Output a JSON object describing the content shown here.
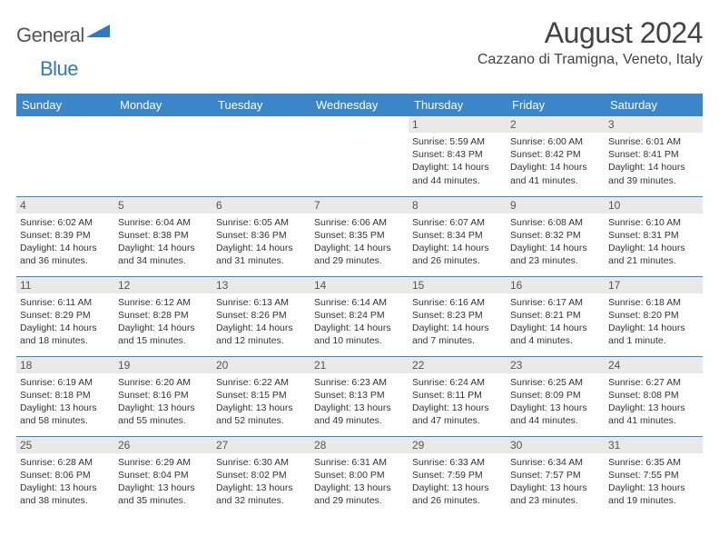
{
  "logo": {
    "word1": "General",
    "word2": "Blue"
  },
  "title": "August 2024",
  "subtitle": "Cazzano di Tramigna, Veneto, Italy",
  "colors": {
    "header_bg": "#3a86c8",
    "header_fg": "#ffffff",
    "daynum_bg": "#e9e9e9",
    "border": "#3a86c8",
    "text": "#333333",
    "logo_gray": "#555555",
    "logo_blue": "#2f79c2"
  },
  "day_headers": [
    "Sunday",
    "Monday",
    "Tuesday",
    "Wednesday",
    "Thursday",
    "Friday",
    "Saturday"
  ],
  "weeks": [
    [
      {
        "empty": true
      },
      {
        "empty": true
      },
      {
        "empty": true
      },
      {
        "empty": true
      },
      {
        "day": "1",
        "sunrise": "Sunrise: 5:59 AM",
        "sunset": "Sunset: 8:43 PM",
        "daylight1": "Daylight: 14 hours",
        "daylight2": "and 44 minutes."
      },
      {
        "day": "2",
        "sunrise": "Sunrise: 6:00 AM",
        "sunset": "Sunset: 8:42 PM",
        "daylight1": "Daylight: 14 hours",
        "daylight2": "and 41 minutes."
      },
      {
        "day": "3",
        "sunrise": "Sunrise: 6:01 AM",
        "sunset": "Sunset: 8:41 PM",
        "daylight1": "Daylight: 14 hours",
        "daylight2": "and 39 minutes."
      }
    ],
    [
      {
        "day": "4",
        "sunrise": "Sunrise: 6:02 AM",
        "sunset": "Sunset: 8:39 PM",
        "daylight1": "Daylight: 14 hours",
        "daylight2": "and 36 minutes."
      },
      {
        "day": "5",
        "sunrise": "Sunrise: 6:04 AM",
        "sunset": "Sunset: 8:38 PM",
        "daylight1": "Daylight: 14 hours",
        "daylight2": "and 34 minutes."
      },
      {
        "day": "6",
        "sunrise": "Sunrise: 6:05 AM",
        "sunset": "Sunset: 8:36 PM",
        "daylight1": "Daylight: 14 hours",
        "daylight2": "and 31 minutes."
      },
      {
        "day": "7",
        "sunrise": "Sunrise: 6:06 AM",
        "sunset": "Sunset: 8:35 PM",
        "daylight1": "Daylight: 14 hours",
        "daylight2": "and 29 minutes."
      },
      {
        "day": "8",
        "sunrise": "Sunrise: 6:07 AM",
        "sunset": "Sunset: 8:34 PM",
        "daylight1": "Daylight: 14 hours",
        "daylight2": "and 26 minutes."
      },
      {
        "day": "9",
        "sunrise": "Sunrise: 6:08 AM",
        "sunset": "Sunset: 8:32 PM",
        "daylight1": "Daylight: 14 hours",
        "daylight2": "and 23 minutes."
      },
      {
        "day": "10",
        "sunrise": "Sunrise: 6:10 AM",
        "sunset": "Sunset: 8:31 PM",
        "daylight1": "Daylight: 14 hours",
        "daylight2": "and 21 minutes."
      }
    ],
    [
      {
        "day": "11",
        "sunrise": "Sunrise: 6:11 AM",
        "sunset": "Sunset: 8:29 PM",
        "daylight1": "Daylight: 14 hours",
        "daylight2": "and 18 minutes."
      },
      {
        "day": "12",
        "sunrise": "Sunrise: 6:12 AM",
        "sunset": "Sunset: 8:28 PM",
        "daylight1": "Daylight: 14 hours",
        "daylight2": "and 15 minutes."
      },
      {
        "day": "13",
        "sunrise": "Sunrise: 6:13 AM",
        "sunset": "Sunset: 8:26 PM",
        "daylight1": "Daylight: 14 hours",
        "daylight2": "and 12 minutes."
      },
      {
        "day": "14",
        "sunrise": "Sunrise: 6:14 AM",
        "sunset": "Sunset: 8:24 PM",
        "daylight1": "Daylight: 14 hours",
        "daylight2": "and 10 minutes."
      },
      {
        "day": "15",
        "sunrise": "Sunrise: 6:16 AM",
        "sunset": "Sunset: 8:23 PM",
        "daylight1": "Daylight: 14 hours",
        "daylight2": "and 7 minutes."
      },
      {
        "day": "16",
        "sunrise": "Sunrise: 6:17 AM",
        "sunset": "Sunset: 8:21 PM",
        "daylight1": "Daylight: 14 hours",
        "daylight2": "and 4 minutes."
      },
      {
        "day": "17",
        "sunrise": "Sunrise: 6:18 AM",
        "sunset": "Sunset: 8:20 PM",
        "daylight1": "Daylight: 14 hours",
        "daylight2": "and 1 minute."
      }
    ],
    [
      {
        "day": "18",
        "sunrise": "Sunrise: 6:19 AM",
        "sunset": "Sunset: 8:18 PM",
        "daylight1": "Daylight: 13 hours",
        "daylight2": "and 58 minutes."
      },
      {
        "day": "19",
        "sunrise": "Sunrise: 6:20 AM",
        "sunset": "Sunset: 8:16 PM",
        "daylight1": "Daylight: 13 hours",
        "daylight2": "and 55 minutes."
      },
      {
        "day": "20",
        "sunrise": "Sunrise: 6:22 AM",
        "sunset": "Sunset: 8:15 PM",
        "daylight1": "Daylight: 13 hours",
        "daylight2": "and 52 minutes."
      },
      {
        "day": "21",
        "sunrise": "Sunrise: 6:23 AM",
        "sunset": "Sunset: 8:13 PM",
        "daylight1": "Daylight: 13 hours",
        "daylight2": "and 49 minutes."
      },
      {
        "day": "22",
        "sunrise": "Sunrise: 6:24 AM",
        "sunset": "Sunset: 8:11 PM",
        "daylight1": "Daylight: 13 hours",
        "daylight2": "and 47 minutes."
      },
      {
        "day": "23",
        "sunrise": "Sunrise: 6:25 AM",
        "sunset": "Sunset: 8:09 PM",
        "daylight1": "Daylight: 13 hours",
        "daylight2": "and 44 minutes."
      },
      {
        "day": "24",
        "sunrise": "Sunrise: 6:27 AM",
        "sunset": "Sunset: 8:08 PM",
        "daylight1": "Daylight: 13 hours",
        "daylight2": "and 41 minutes."
      }
    ],
    [
      {
        "day": "25",
        "sunrise": "Sunrise: 6:28 AM",
        "sunset": "Sunset: 8:06 PM",
        "daylight1": "Daylight: 13 hours",
        "daylight2": "and 38 minutes."
      },
      {
        "day": "26",
        "sunrise": "Sunrise: 6:29 AM",
        "sunset": "Sunset: 8:04 PM",
        "daylight1": "Daylight: 13 hours",
        "daylight2": "and 35 minutes."
      },
      {
        "day": "27",
        "sunrise": "Sunrise: 6:30 AM",
        "sunset": "Sunset: 8:02 PM",
        "daylight1": "Daylight: 13 hours",
        "daylight2": "and 32 minutes."
      },
      {
        "day": "28",
        "sunrise": "Sunrise: 6:31 AM",
        "sunset": "Sunset: 8:00 PM",
        "daylight1": "Daylight: 13 hours",
        "daylight2": "and 29 minutes."
      },
      {
        "day": "29",
        "sunrise": "Sunrise: 6:33 AM",
        "sunset": "Sunset: 7:59 PM",
        "daylight1": "Daylight: 13 hours",
        "daylight2": "and 26 minutes."
      },
      {
        "day": "30",
        "sunrise": "Sunrise: 6:34 AM",
        "sunset": "Sunset: 7:57 PM",
        "daylight1": "Daylight: 13 hours",
        "daylight2": "and 23 minutes."
      },
      {
        "day": "31",
        "sunrise": "Sunrise: 6:35 AM",
        "sunset": "Sunset: 7:55 PM",
        "daylight1": "Daylight: 13 hours",
        "daylight2": "and 19 minutes."
      }
    ]
  ]
}
